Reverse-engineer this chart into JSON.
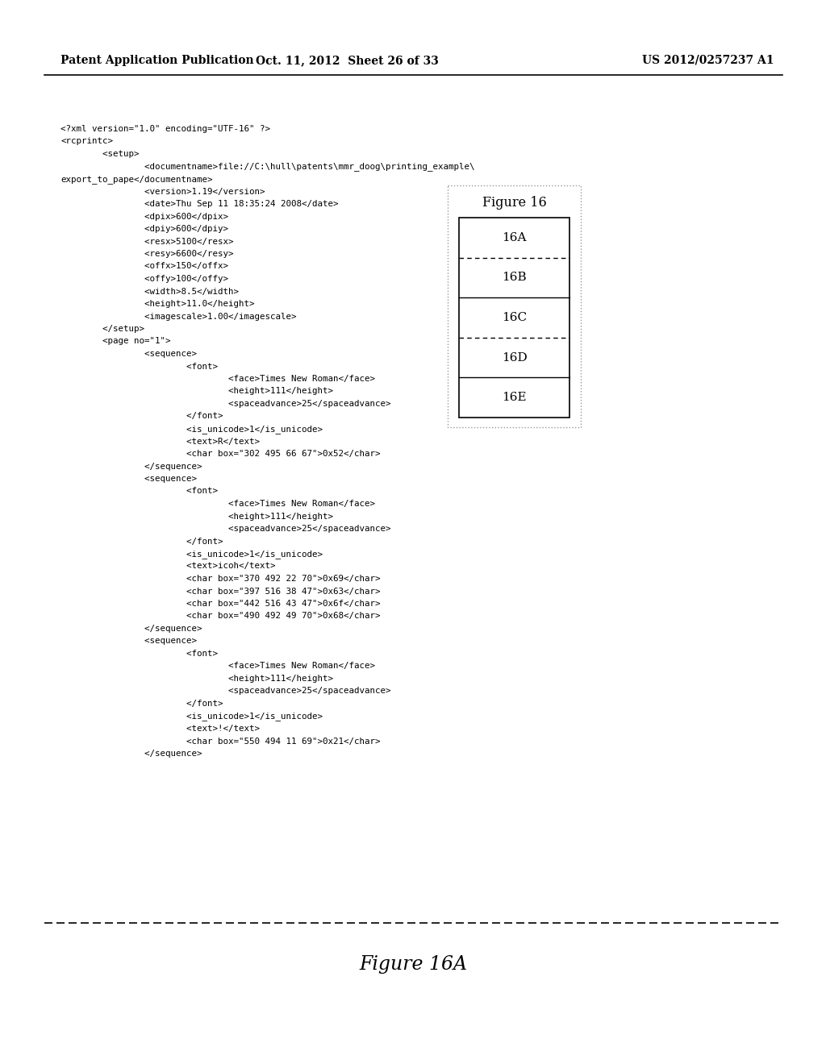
{
  "bg_color": "#ffffff",
  "header_left": "Patent Application Publication",
  "header_center": "Oct. 11, 2012  Sheet 26 of 33",
  "header_right": "US 2012/0257237 A1",
  "figure_caption": "Figure 16A",
  "figure_label": "Figure 16",
  "figure_sections": [
    "16A",
    "16B",
    "16C",
    "16D",
    "16E"
  ],
  "divider_styles": [
    "dashed",
    "solid",
    "dashed",
    "solid"
  ],
  "xml_lines": [
    "<?xml version=\"1.0\" encoding=\"UTF-16\" ?>",
    "<rcprintc>",
    "        <setup>",
    "                <documentname>file://C:\\hull\\patents\\mmr_doog\\printing_example\\",
    "export_to_pape</documentname>",
    "                <version>1.19</version>",
    "                <date>Thu Sep 11 18:35:24 2008</date>",
    "                <dpix>600</dpix>",
    "                <dpiy>600</dpiy>",
    "                <resx>5100</resx>",
    "                <resy>6600</resy>",
    "                <offx>150</offx>",
    "                <offy>100</offy>",
    "                <width>8.5</width>",
    "                <height>11.0</height>",
    "                <imagescale>1.00</imagescale>",
    "        </setup>",
    "        <page no=\"1\">",
    "                <sequence>",
    "                        <font>",
    "                                <face>Times New Roman</face>",
    "                                <height>111</height>",
    "                                <spaceadvance>25</spaceadvance>",
    "                        </font>",
    "                        <is_unicode>1</is_unicode>",
    "                        <text>R</text>",
    "                        <char box=\"302 495 66 67\">0x52</char>",
    "                </sequence>",
    "                <sequence>",
    "                        <font>",
    "                                <face>Times New Roman</face>",
    "                                <height>111</height>",
    "                                <spaceadvance>25</spaceadvance>",
    "                        </font>",
    "                        <is_unicode>1</is_unicode>",
    "                        <text>icoh</text>",
    "                        <char box=\"370 492 22 70\">0x69</char>",
    "                        <char box=\"397 516 38 47\">0x63</char>",
    "                        <char box=\"442 516 43 47\">0x6f</char>",
    "                        <char box=\"490 492 49 70\">0x68</char>",
    "                </sequence>",
    "                <sequence>",
    "                        <font>",
    "                                <face>Times New Roman</face>",
    "                                <height>111</height>",
    "                                <spaceadvance>25</spaceadvance>",
    "                        </font>",
    "                        <is_unicode>1</is_unicode>",
    "                        <text>!</text>",
    "                        <char box=\"550 494 11 69\">0x21</char>",
    "                </sequence>"
  ],
  "code_font_size": 7.8,
  "header_font_size": 10.0,
  "fig16_label_fontsize": 11.5,
  "fig16_section_fontsize": 11.0,
  "caption_fontsize": 17.0
}
